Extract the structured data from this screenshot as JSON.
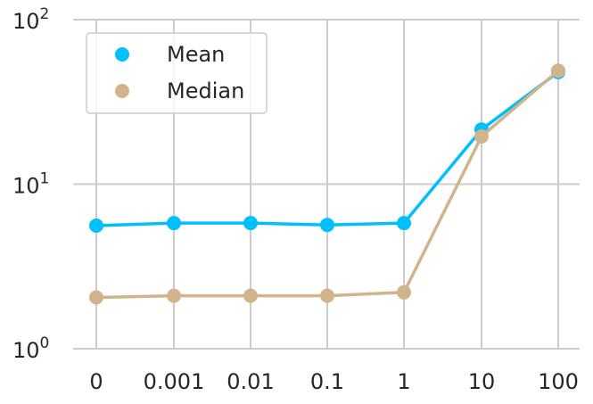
{
  "chart_data": {
    "type": "line",
    "categories": [
      "0",
      "0.001",
      "0.01",
      "0.1",
      "1",
      "10",
      "100"
    ],
    "series": [
      {
        "name": "Mean",
        "color": "#00bfff",
        "values": [
          5.6,
          5.8,
          5.8,
          5.65,
          5.8,
          21.5,
          48
        ]
      },
      {
        "name": "Median",
        "color": "#d2b48c",
        "values": [
          2.05,
          2.1,
          2.1,
          2.1,
          2.2,
          19.5,
          49
        ]
      }
    ],
    "y_scale": "log",
    "ylim": [
      1,
      100
    ],
    "y_ticks": [
      {
        "base": "10",
        "exp": "0"
      },
      {
        "base": "10",
        "exp": "1"
      },
      {
        "base": "10",
        "exp": "2"
      }
    ],
    "grid": true,
    "legend_position": "top-left",
    "xlabel": "",
    "ylabel": "",
    "title": ""
  }
}
